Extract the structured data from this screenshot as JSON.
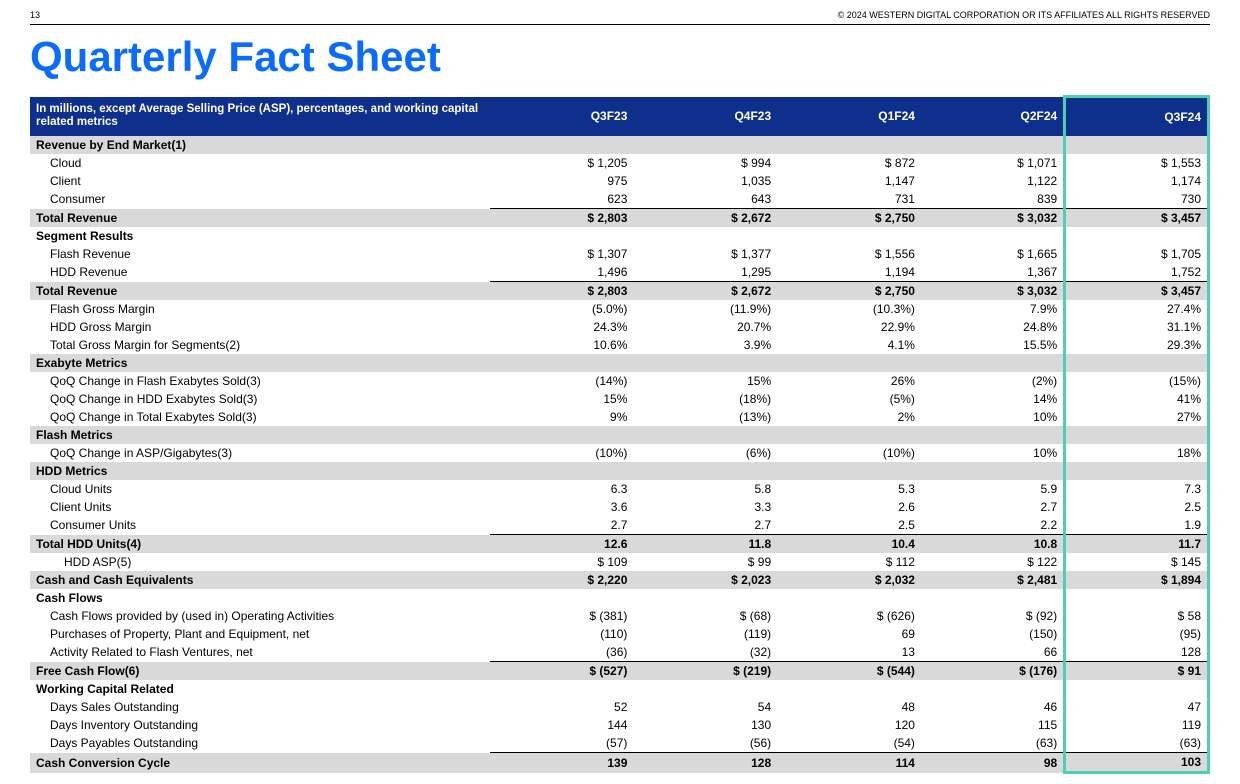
{
  "page_number": "13",
  "copyright": "© 2024 WESTERN DIGITAL CORPORATION OR ITS AFFILIATES  ALL RIGHTS RESERVED",
  "title": "Quarterly Fact Sheet",
  "header_note": "In millions, except Average Selling Price (ASP), percentages, and working capital related metrics",
  "columns": [
    "Q3F23",
    "Q4F23",
    "Q1F24",
    "Q2F24",
    "Q3F24"
  ],
  "colors": {
    "title": "#0a6bff",
    "header_bg": "#0e2f8c",
    "gray_row": "#d9d9d9",
    "highlight_border": "#4bd0b0",
    "rule": "#000000"
  },
  "rows": [
    {
      "k": "section",
      "label": "Revenue by End Market(1)",
      "cls": "section gray"
    },
    {
      "k": "data",
      "label": "Cloud",
      "cls": "indent1",
      "v": [
        "$ 1,205",
        "$ 994",
        "$ 872",
        "$ 1,071",
        "$ 1,553"
      ]
    },
    {
      "k": "data",
      "label": "Client",
      "cls": "indent1",
      "v": [
        "975",
        "1,035",
        "1,147",
        "1,122",
        "1,174"
      ]
    },
    {
      "k": "data",
      "label": "Consumer",
      "cls": "indent1",
      "v": [
        "623",
        "643",
        "731",
        "839",
        "730"
      ]
    },
    {
      "k": "data",
      "label": "Total Revenue",
      "cls": "section gray bold top-line",
      "v": [
        "$ 2,803",
        "$ 2,672",
        "$ 2,750",
        "$ 3,032",
        "$ 3,457"
      ]
    },
    {
      "k": "section",
      "label": "Segment Results",
      "cls": "section"
    },
    {
      "k": "data",
      "label": "Flash Revenue",
      "cls": "indent1",
      "v": [
        "$ 1,307",
        "$ 1,377",
        "$ 1,556",
        "$ 1,665",
        "$ 1,705"
      ]
    },
    {
      "k": "data",
      "label": "HDD Revenue",
      "cls": "indent1",
      "v": [
        "1,496",
        "1,295",
        "1,194",
        "1,367",
        "1,752"
      ]
    },
    {
      "k": "data",
      "label": "Total Revenue",
      "cls": "section gray bold top-line",
      "v": [
        "$ 2,803",
        "$ 2,672",
        "$ 2,750",
        "$ 3,032",
        "$ 3,457"
      ]
    },
    {
      "k": "data",
      "label": "Flash Gross Margin",
      "cls": "indent1",
      "v": [
        "(5.0%)",
        "(11.9%)",
        "(10.3%)",
        "7.9%",
        "27.4%"
      ]
    },
    {
      "k": "data",
      "label": "HDD Gross Margin",
      "cls": "indent1",
      "v": [
        "24.3%",
        "20.7%",
        "22.9%",
        "24.8%",
        "31.1%"
      ]
    },
    {
      "k": "data",
      "label": "Total Gross Margin for Segments(2)",
      "cls": "indent1",
      "v": [
        "10.6%",
        "3.9%",
        "4.1%",
        "15.5%",
        "29.3%"
      ]
    },
    {
      "k": "section",
      "label": "Exabyte Metrics",
      "cls": "section gray"
    },
    {
      "k": "data",
      "label": "QoQ Change in Flash Exabytes Sold(3)",
      "cls": "indent1",
      "v": [
        "(14%)",
        "15%",
        "26%",
        "(2%)",
        "(15%)"
      ]
    },
    {
      "k": "data",
      "label": "QoQ Change in HDD Exabytes Sold(3)",
      "cls": "indent1",
      "v": [
        "15%",
        "(18%)",
        "(5%)",
        "14%",
        "41%"
      ]
    },
    {
      "k": "data",
      "label": "QoQ Change in Total Exabytes Sold(3)",
      "cls": "indent1",
      "v": [
        "9%",
        "(13%)",
        "2%",
        "10%",
        "27%"
      ]
    },
    {
      "k": "section",
      "label": "Flash Metrics",
      "cls": "section gray"
    },
    {
      "k": "data",
      "label": "QoQ Change in ASP/Gigabytes(3)",
      "cls": "indent1",
      "v": [
        "(10%)",
        "(6%)",
        "(10%)",
        "10%",
        "18%"
      ]
    },
    {
      "k": "section",
      "label": "HDD Metrics",
      "cls": "section gray"
    },
    {
      "k": "data",
      "label": "Cloud Units",
      "cls": "indent1",
      "v": [
        "6.3",
        "5.8",
        "5.3",
        "5.9",
        "7.3"
      ]
    },
    {
      "k": "data",
      "label": "Client Units",
      "cls": "indent1",
      "v": [
        "3.6",
        "3.3",
        "2.6",
        "2.7",
        "2.5"
      ]
    },
    {
      "k": "data",
      "label": "Consumer Units",
      "cls": "indent1",
      "v": [
        "2.7",
        "2.7",
        "2.5",
        "2.2",
        "1.9"
      ]
    },
    {
      "k": "data",
      "label": "Total HDD Units(4)",
      "cls": "section gray bold top-line",
      "v": [
        "12.6",
        "11.8",
        "10.4",
        "10.8",
        "11.7"
      ]
    },
    {
      "k": "data",
      "label": "HDD ASP(5)",
      "cls": "indent2",
      "v": [
        "$ 109",
        "$ 99",
        "$ 112",
        "$ 122",
        "$ 145"
      ]
    },
    {
      "k": "data",
      "label": "Cash and Cash Equivalents",
      "cls": "section gray bold",
      "v": [
        "$ 2,220",
        "$ 2,023",
        "$ 2,032",
        "$ 2,481",
        "$ 1,894"
      ]
    },
    {
      "k": "section",
      "label": "Cash Flows",
      "cls": "section"
    },
    {
      "k": "data",
      "label": "Cash Flows provided by (used in) Operating Activities",
      "cls": "indent1",
      "v": [
        "$ (381)",
        "$ (68)",
        "$ (626)",
        "$ (92)",
        "$ 58"
      ]
    },
    {
      "k": "data",
      "label": "Purchases of Property, Plant and Equipment, net",
      "cls": "indent1",
      "v": [
        "(110)",
        "(119)",
        "69",
        "(150)",
        "(95)"
      ]
    },
    {
      "k": "data",
      "label": "Activity Related to Flash Ventures, net",
      "cls": "indent1",
      "v": [
        "(36)",
        "(32)",
        "13",
        "66",
        "128"
      ]
    },
    {
      "k": "data",
      "label": "Free Cash Flow(6)",
      "cls": "section gray bold top-line",
      "v": [
        "$ (527)",
        "$ (219)",
        "$ (544)",
        "$ (176)",
        "$ 91"
      ]
    },
    {
      "k": "section",
      "label": "Working Capital Related",
      "cls": "section"
    },
    {
      "k": "data",
      "label": "Days Sales Outstanding",
      "cls": "indent1",
      "v": [
        "52",
        "54",
        "48",
        "46",
        "47"
      ]
    },
    {
      "k": "data",
      "label": "Days Inventory Outstanding",
      "cls": "indent1",
      "v": [
        "144",
        "130",
        "120",
        "115",
        "119"
      ]
    },
    {
      "k": "data",
      "label": "Days Payables Outstanding",
      "cls": "indent1",
      "v": [
        "(57)",
        "(56)",
        "(54)",
        "(63)",
        "(63)"
      ]
    },
    {
      "k": "data",
      "label": "Cash Conversion Cycle",
      "cls": "section gray bold top-line",
      "v": [
        "139",
        "128",
        "114",
        "98",
        "103"
      ]
    }
  ]
}
